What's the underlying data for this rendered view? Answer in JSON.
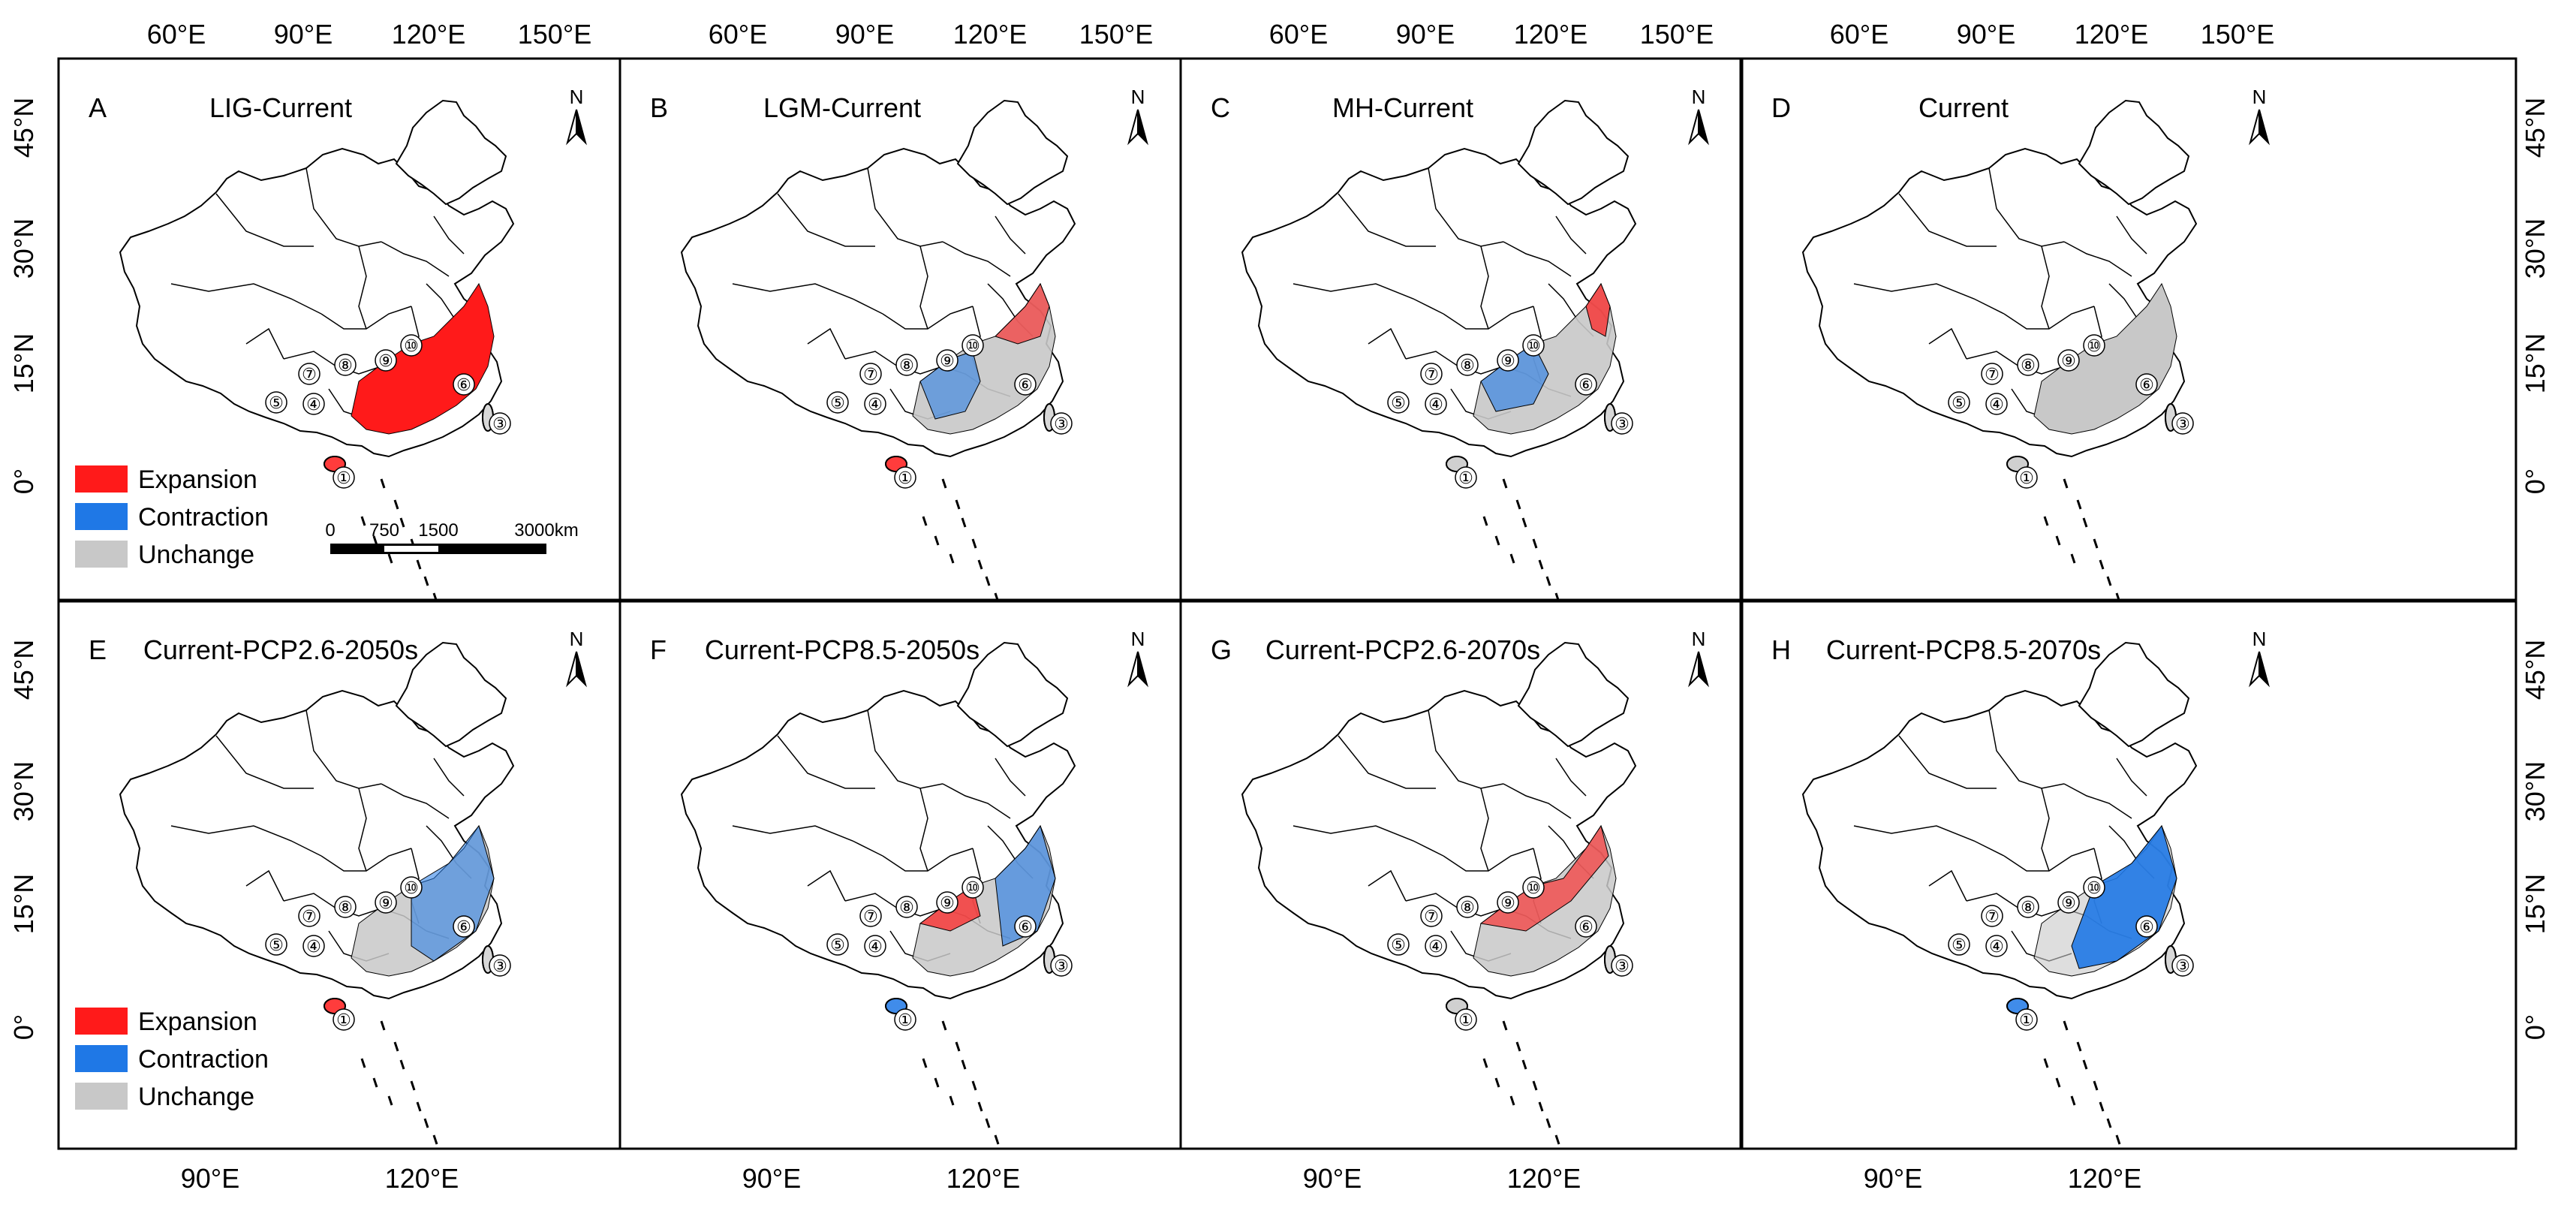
{
  "figure": {
    "axis_labels": {
      "top": [
        "60°E",
        "90°E",
        "120°E",
        "150°E"
      ],
      "bottom": [
        "90°E",
        "120°E"
      ],
      "lat": [
        "45°N",
        "30°N",
        "15°N",
        "0°"
      ]
    },
    "north_label": "N",
    "panels": [
      {
        "letter": "A",
        "title": "LIG-Current",
        "mode": "LIG"
      },
      {
        "letter": "B",
        "title": "LGM-Current",
        "mode": "LGM"
      },
      {
        "letter": "C",
        "title": "MH-Current",
        "mode": "MH"
      },
      {
        "letter": "D",
        "title": "Current",
        "mode": "CUR"
      },
      {
        "letter": "E",
        "title": "Current-PCP2.6-2050s",
        "mode": "E"
      },
      {
        "letter": "F",
        "title": "Current-PCP8.5-2050s",
        "mode": "F"
      },
      {
        "letter": "G",
        "title": "Current-PCP2.6-2070s",
        "mode": "G"
      },
      {
        "letter": "H",
        "title": "Current-PCP8.5-2070s",
        "mode": "H"
      }
    ],
    "legend": {
      "items": [
        {
          "label": "Expansion",
          "color": "#ff1a1a"
        },
        {
          "label": "Contraction",
          "color": "#1f78e6"
        },
        {
          "label": "Unchange",
          "color": "#c8c8c8"
        }
      ]
    },
    "scale_bar": {
      "labels": [
        "0",
        "750",
        "1500",
        "3000km"
      ]
    },
    "region_markers": [
      "①",
      "③",
      "④",
      "⑤",
      "⑥",
      "⑦",
      "⑧",
      "⑨",
      "⑩"
    ]
  }
}
